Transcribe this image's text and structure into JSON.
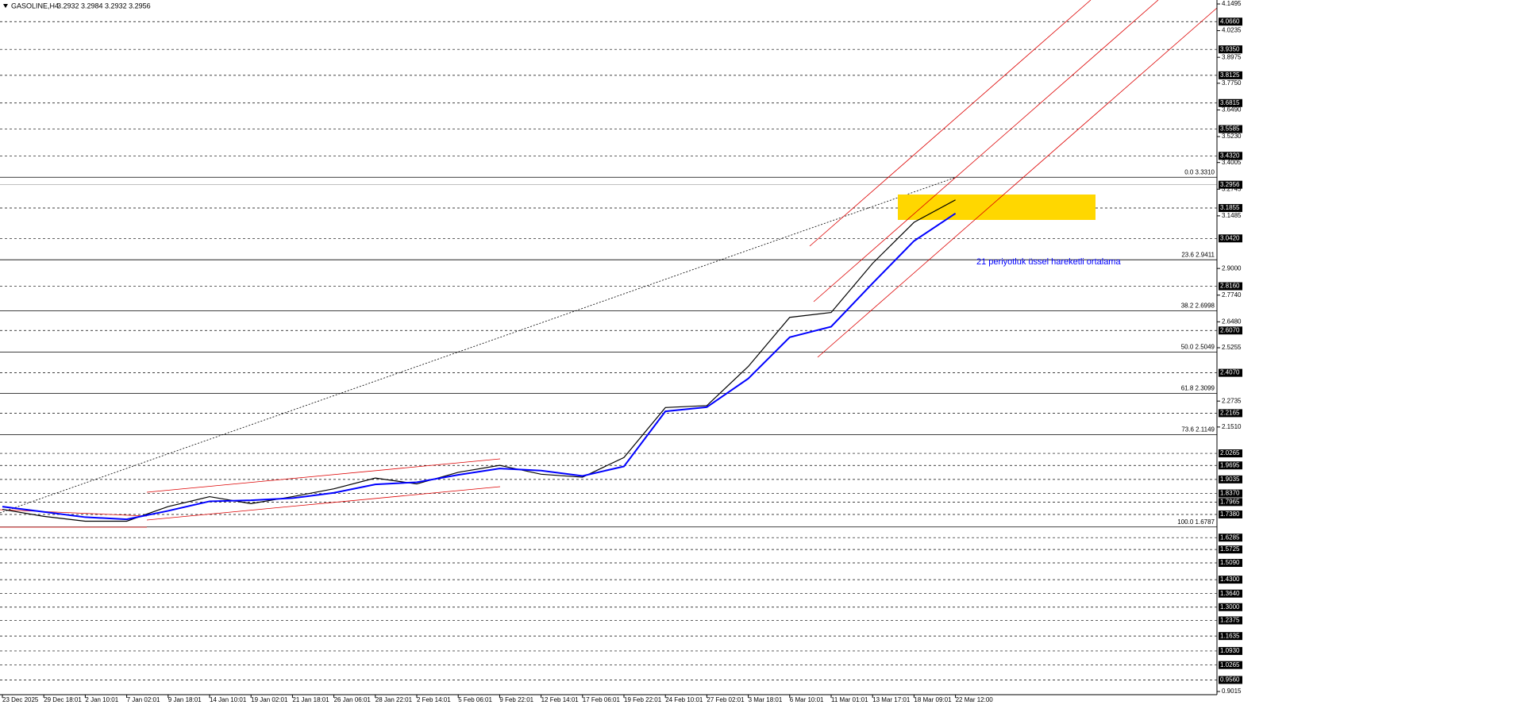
{
  "chart_data": {
    "type": "line",
    "title": "GASOLINE,H4",
    "ohlc": "3.2932 3.2984 3.2932 3.2956",
    "categories": [
      "23 Dec 2025",
      "29 Dec 18:01",
      "2 Jan 10:01",
      "7 Jan 02:01",
      "9 Jan 18:01",
      "14 Jan 10:01",
      "19 Jan 02:01",
      "21 Jan 18:01",
      "26 Jan 06:01",
      "28 Jan 22:01",
      "2 Feb 14:01",
      "5 Feb 06:01",
      "9 Feb 22:01",
      "12 Feb 14:01",
      "17 Feb 06:01",
      "19 Feb 22:01",
      "24 Feb 10:01",
      "27 Feb 02:01",
      "3 Mar 18:01",
      "6 Mar 10:01",
      "11 Mar 01:01",
      "13 Mar 17:01",
      "18 Mar 09:01",
      "22 Mar 12:00"
    ],
    "series": [
      {
        "color": "#000000",
        "values": [
          1.762,
          1.729,
          1.706,
          1.706,
          1.775,
          1.822,
          1.789,
          1.822,
          1.859,
          1.91,
          1.882,
          1.937,
          1.97,
          1.928,
          1.914,
          2.007,
          2.243,
          2.252,
          2.437,
          2.669,
          2.692,
          2.924,
          3.118,
          3.224
        ]
      },
      {
        "name": "21 periyotluk üssel hareketli ortalama",
        "color": "#0000ff",
        "values": [
          1.775,
          1.75,
          1.725,
          1.715,
          1.755,
          1.8,
          1.805,
          1.815,
          1.84,
          1.88,
          1.89,
          1.925,
          1.955,
          1.945,
          1.92,
          1.965,
          2.225,
          2.245,
          2.38,
          2.575,
          2.625,
          2.83,
          3.03,
          3.16
        ]
      }
    ],
    "ylim": [
      0.9015,
      4.1495
    ],
    "yticks": [
      0.9015,
      {
        "value": 2.151,
        "label": "2.1510"
      },
      2.2735,
      2.5255,
      {
        "value": 2.648,
        "label": "2.6480"
      },
      {
        "value": 2.774,
        "label": "2.7740"
      },
      {
        "value": 2.9,
        "label": "2.9000"
      },
      3.1485,
      3.2745,
      3.4005,
      {
        "value": 3.523,
        "label": "3.5230"
      },
      {
        "value": 3.649,
        "label": "3.6490"
      },
      {
        "value": 3.775,
        "label": "3.7750"
      },
      3.8975,
      4.0235,
      4.1495
    ],
    "levels": [
      {
        "value": 4.066,
        "label": "4.0660"
      },
      {
        "value": 3.935,
        "label": "3.9350"
      },
      3.8125,
      3.6815,
      3.5585,
      {
        "value": 3.432,
        "label": "3.4320"
      },
      3.1855,
      {
        "value": 3.042,
        "label": "3.0420"
      },
      {
        "value": 2.816,
        "label": "2.8160"
      },
      {
        "value": 2.607,
        "label": "2.6070"
      },
      {
        "value": 2.407,
        "label": "2.4070"
      },
      2.2165,
      2.0265,
      1.9695,
      1.9035,
      {
        "value": 1.837,
        "label": "1.8370"
      },
      1.7965,
      {
        "value": 1.738,
        "label": "1.7380"
      },
      1.6285,
      1.5725,
      {
        "value": 1.509,
        "label": "1.5090"
      },
      {
        "value": 1.43,
        "label": "1.4300"
      },
      {
        "value": 1.364,
        "label": "1.3640"
      },
      {
        "value": 1.3,
        "label": "1.3000"
      },
      1.2375,
      1.1635,
      {
        "value": 1.093,
        "label": "1.0930"
      },
      1.0265,
      {
        "value": 0.956,
        "label": "0.9560"
      }
    ],
    "current_price": 3.2956,
    "fibonacci": [
      {
        "value": 3.331,
        "label": "0.0 3.3310"
      },
      {
        "value": 2.9411,
        "label": "23.6 2.9411"
      },
      {
        "value": 2.6998,
        "label": "38.2 2.6998"
      },
      {
        "value": 2.5049,
        "label": "50.0 2.5049"
      },
      {
        "value": 2.3099,
        "label": "61.8 2.3099"
      },
      {
        "value": 2.1149,
        "label": "73.6 2.1149"
      },
      {
        "value": 1.6787,
        "label": "100.0 1.6787"
      }
    ]
  }
}
